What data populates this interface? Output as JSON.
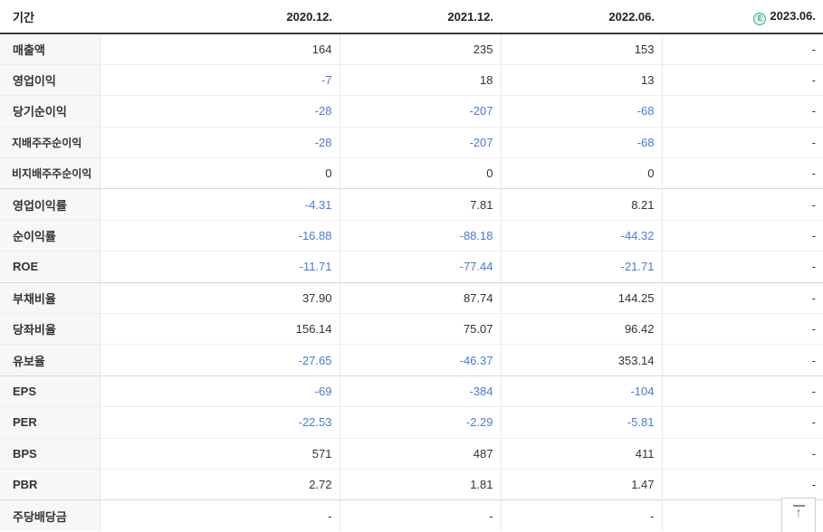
{
  "table": {
    "header": {
      "period_label": "기간",
      "columns": [
        "2020.12.",
        "2021.12.",
        "2022.06.",
        "2023.06."
      ],
      "estimate_icon": "E"
    },
    "rows": [
      {
        "label": "매출액",
        "values": [
          "164",
          "235",
          "153",
          "-"
        ]
      },
      {
        "label": "영업이익",
        "values": [
          "-7",
          "18",
          "13",
          "-"
        ]
      },
      {
        "label": "당기순이익",
        "values": [
          "-28",
          "-207",
          "-68",
          "-"
        ]
      },
      {
        "label": "지배주주순이익",
        "values": [
          "-28",
          "-207",
          "-68",
          "-"
        ],
        "small": true
      },
      {
        "label": "비지배주주순이익",
        "values": [
          "0",
          "0",
          "0",
          "-"
        ],
        "small": true
      },
      {
        "label": "영업이익률",
        "values": [
          "-4.31",
          "7.81",
          "8.21",
          "-"
        ],
        "group_start": true
      },
      {
        "label": "순이익률",
        "values": [
          "-16.88",
          "-88.18",
          "-44.32",
          "-"
        ]
      },
      {
        "label": "ROE",
        "values": [
          "-11.71",
          "-77.44",
          "-21.71",
          "-"
        ]
      },
      {
        "label": "부채비율",
        "values": [
          "37.90",
          "87.74",
          "144.25",
          "-"
        ],
        "group_start": true
      },
      {
        "label": "당좌비율",
        "values": [
          "156.14",
          "75.07",
          "96.42",
          "-"
        ]
      },
      {
        "label": "유보율",
        "values": [
          "-27.65",
          "-46.37",
          "353.14",
          "-"
        ]
      },
      {
        "label": "EPS",
        "values": [
          "-69",
          "-384",
          "-104",
          "-"
        ],
        "group_start": true
      },
      {
        "label": "PER",
        "values": [
          "-22.53",
          "-2.29",
          "-5.81",
          "-"
        ]
      },
      {
        "label": "BPS",
        "values": [
          "571",
          "487",
          "411",
          "-"
        ]
      },
      {
        "label": "PBR",
        "values": [
          "2.72",
          "1.81",
          "1.47",
          "-"
        ]
      },
      {
        "label": "주당배당금",
        "values": [
          "-",
          "-",
          "-",
          "-"
        ],
        "group_start": true
      }
    ]
  },
  "colors": {
    "negative_value": "#4a7ad8",
    "positive_value": "#333333",
    "estimate_icon_green": "#2fb47c",
    "header_border": "#3c3c3c",
    "label_column_bg": "#f7f7f7"
  },
  "scroll_top_button": {
    "icon": "arrow-up-to-top",
    "arrow_glyph": "↑"
  }
}
